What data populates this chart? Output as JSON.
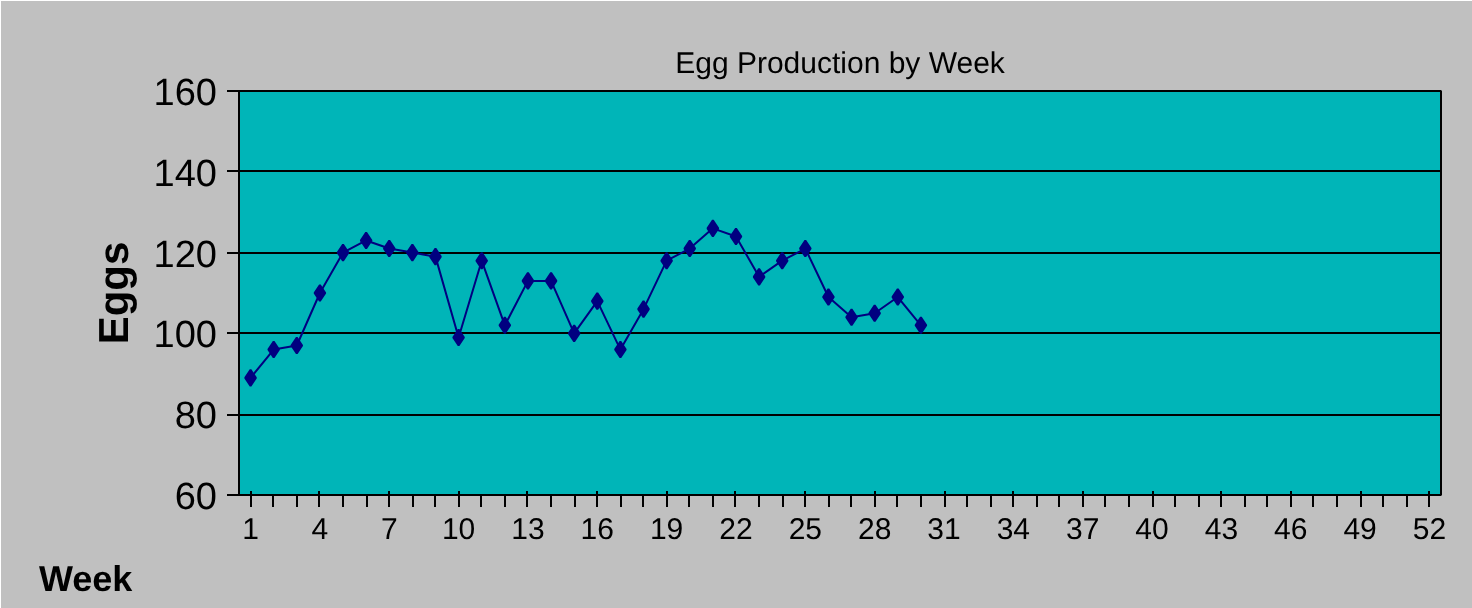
{
  "chart_data": {
    "type": "line",
    "title": "Egg Production by Week",
    "xlabel": "Week",
    "ylabel": "Eggs",
    "categories": [
      "1",
      null,
      null,
      "4",
      null,
      null,
      "7",
      null,
      null,
      "10",
      null,
      null,
      "13",
      null,
      null,
      "16",
      null,
      null,
      "19",
      null,
      null,
      "22",
      null,
      null,
      "25",
      null,
      null,
      "28",
      null,
      null,
      "31",
      null,
      null,
      "34",
      null,
      null,
      "37",
      null,
      null,
      "40",
      null,
      null,
      "43",
      null,
      null,
      "46",
      null,
      null,
      "49",
      null,
      null,
      "52"
    ],
    "series": [
      {
        "color": "#000080",
        "values": [
          89,
          96,
          97,
          110,
          120,
          123,
          121,
          120,
          119,
          99,
          118,
          102,
          113,
          113,
          100,
          108,
          96,
          106,
          118,
          121,
          126,
          124,
          114,
          118,
          121,
          109,
          104,
          105,
          109,
          102,
          null,
          null,
          null,
          null,
          null,
          null,
          null,
          null,
          null,
          null,
          null,
          null,
          null,
          null,
          null,
          null,
          null,
          null,
          null,
          null,
          null,
          null
        ]
      }
    ],
    "ylim": [
      60,
      160
    ],
    "yticks": [
      60,
      80,
      100,
      120,
      140,
      160
    ],
    "grid": "y",
    "marker": "diamond",
    "line_style": "solid"
  }
}
